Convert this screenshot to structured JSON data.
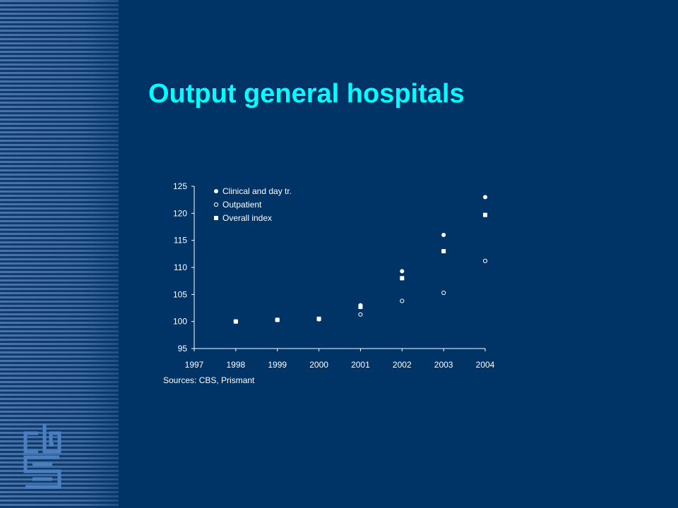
{
  "slide": {
    "title": "Output general hospitals",
    "source_note": "Sources: CBS, Prismant",
    "logo": "cbs-logo-icon",
    "colors": {
      "background": "#003366",
      "title": "#00ffff",
      "stripe": "#4a73a8",
      "logo": "#4a7fc0",
      "chart_text": "#ffffff"
    }
  },
  "chart_data": {
    "type": "scatter",
    "title": "",
    "xlabel": "",
    "ylabel": "",
    "xlim": [
      1997,
      2004
    ],
    "ylim": [
      95,
      125
    ],
    "x_ticks": [
      "1997",
      "1998",
      "1999",
      "2000",
      "2001",
      "2002",
      "2003",
      "2004"
    ],
    "y_ticks": [
      "95",
      "100",
      "105",
      "110",
      "115",
      "120",
      "125"
    ],
    "grid": false,
    "legend_position": "top-left",
    "series": [
      {
        "name": "Clinical and day tr.",
        "marker": "filled-circle",
        "x": [
          1998,
          1999,
          2000,
          2001,
          2002,
          2003,
          2004
        ],
        "y": [
          100,
          100.3,
          100.5,
          103,
          109.3,
          116,
          123
        ]
      },
      {
        "name": "Outpatient",
        "marker": "open-circle",
        "x": [
          1998,
          1999,
          2000,
          2001,
          2002,
          2003,
          2004
        ],
        "y": [
          100,
          100.3,
          100.4,
          101.3,
          103.8,
          105.3,
          111.2
        ]
      },
      {
        "name": "Overall index",
        "marker": "filled-square",
        "x": [
          1998,
          1999,
          2000,
          2001,
          2002,
          2003,
          2004
        ],
        "y": [
          100,
          100.3,
          100.5,
          102.7,
          108,
          113,
          119.7
        ]
      }
    ]
  }
}
